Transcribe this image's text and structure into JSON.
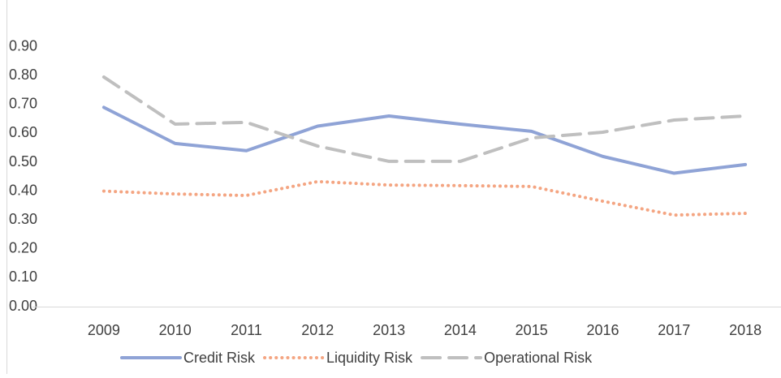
{
  "chart_data": {
    "type": "line",
    "categories": [
      "2009",
      "2010",
      "2011",
      "2012",
      "2013",
      "2014",
      "2015",
      "2016",
      "2017",
      "2018"
    ],
    "series": [
      {
        "name": "Credit Risk",
        "color": "#8fa3d6",
        "dash": "solid",
        "values": [
          0.69,
          0.565,
          0.54,
          0.625,
          0.66,
          0.632,
          0.607,
          0.52,
          0.462,
          0.492
        ]
      },
      {
        "name": "Liquidity Risk",
        "color": "#f4a582",
        "dash": "dotted",
        "values": [
          0.4,
          0.39,
          0.385,
          0.433,
          0.421,
          0.419,
          0.416,
          0.365,
          0.317,
          0.323
        ]
      },
      {
        "name": "Operational Risk",
        "color": "#bfbfbf",
        "dash": "dashed",
        "values": [
          0.795,
          0.632,
          0.638,
          0.556,
          0.503,
          0.503,
          0.584,
          0.604,
          0.646,
          0.66
        ]
      }
    ],
    "ylim": [
      0,
      1
    ],
    "yticks": [
      {
        "value": 0,
        "label": "0.00"
      },
      {
        "value": 0.1,
        "label": "0.10"
      },
      {
        "value": 0.2,
        "label": "0.20"
      },
      {
        "value": 0.3,
        "label": "0.30"
      },
      {
        "value": 0.4,
        "label": "0.40"
      },
      {
        "value": 0.5,
        "label": "0.50"
      },
      {
        "value": 0.6,
        "label": "0.60"
      },
      {
        "value": 0.7,
        "label": "0.70"
      },
      {
        "value": 0.8,
        "label": "0.80"
      },
      {
        "value": 0.9,
        "label": "0.90"
      }
    ],
    "legend": "bottom",
    "grid": false
  }
}
